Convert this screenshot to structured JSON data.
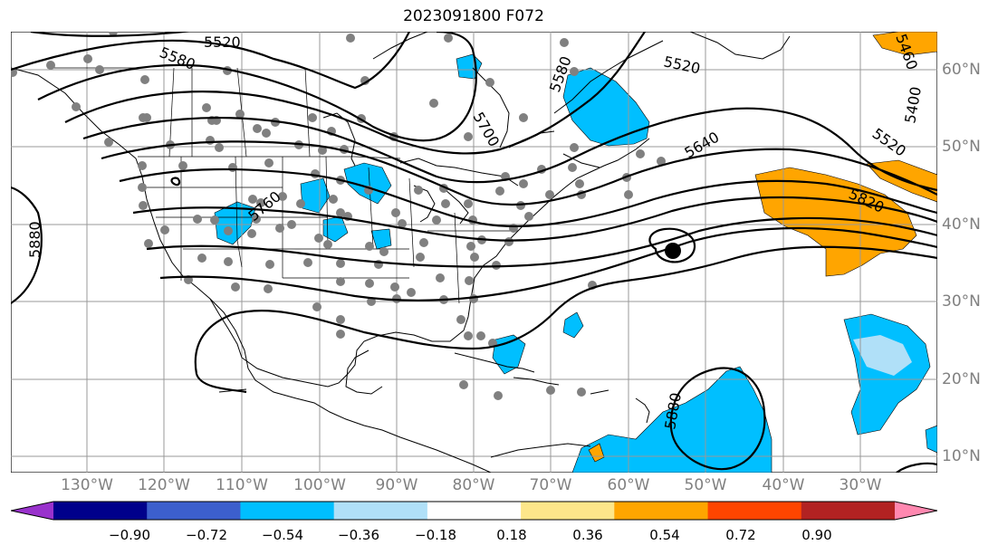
{
  "title": "2023091800 F072",
  "lon_labels": [
    "130°W",
    "120°W",
    "110°W",
    "100°W",
    "90°W",
    "80°W",
    "70°W",
    "60°W",
    "50°W",
    "40°W",
    "30°W"
  ],
  "lat_labels": [
    "60°N",
    "50°N",
    "40°N",
    "30°N",
    "20°N",
    "10°N"
  ],
  "contour_labels": [
    "5520",
    "5580",
    "5520",
    "5580",
    "5400",
    "5520",
    "5700",
    "5640",
    "5820",
    "5760",
    "5880",
    "5880",
    "5460"
  ],
  "colorbar": {
    "ticks": [
      "−0.90",
      "−0.72",
      "−0.54",
      "−0.36",
      "−0.18",
      "0.18",
      "0.36",
      "0.54",
      "0.72",
      "0.90"
    ],
    "colors": [
      "#9932cc",
      "#00008b",
      "#3c5fcd",
      "#00bfff",
      "#b0e0f8",
      "#ffffff",
      "#fde68a",
      "#ffa500",
      "#ff4500",
      "#b22222",
      "#ff88b0"
    ]
  },
  "colors": {
    "positive_fill": "#ffa500",
    "negative_fill": "#00bfff",
    "station_dot": "#808080",
    "grid": "#999999"
  }
}
